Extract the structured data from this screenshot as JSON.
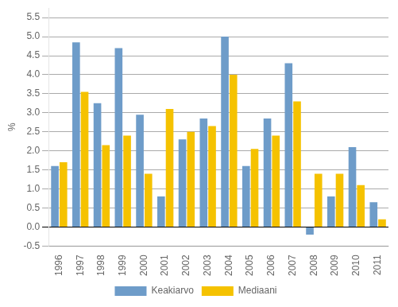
{
  "chart_data": {
    "type": "bar",
    "ylabel": "%",
    "categories": [
      "1996",
      "1997",
      "1998",
      "1999",
      "2000",
      "2001",
      "2002",
      "2003",
      "2004",
      "2005",
      "2006",
      "2007",
      "2008",
      "2009",
      "2010",
      "2011"
    ],
    "series": [
      {
        "name": "Keakiarvo",
        "color": "#6e9cc9",
        "values": [
          1.6,
          4.85,
          3.25,
          4.7,
          2.95,
          0.8,
          2.3,
          2.85,
          5.0,
          1.6,
          2.85,
          4.3,
          -0.2,
          0.8,
          2.1,
          0.65
        ]
      },
      {
        "name": "Mediaani",
        "color": "#f5c200",
        "values": [
          1.7,
          3.55,
          2.15,
          2.4,
          1.4,
          3.1,
          2.5,
          2.65,
          4.0,
          2.05,
          2.4,
          3.3,
          1.4,
          1.4,
          1.1,
          0.2
        ]
      }
    ],
    "ylim": [
      -0.5,
      5.75
    ],
    "yticks": [
      -0.5,
      {
        "value": 0,
        "label": "0.0"
      },
      0.5,
      {
        "value": 1,
        "label": "1.0"
      },
      1.5,
      {
        "value": 2,
        "label": "2.0"
      },
      2.5,
      {
        "value": 3,
        "label": "3.0"
      },
      3.5,
      {
        "value": 4,
        "label": "4.0"
      },
      4.5,
      {
        "value": 5,
        "label": "5.0"
      },
      5.5
    ],
    "grid": true,
    "legend": "bottom"
  }
}
